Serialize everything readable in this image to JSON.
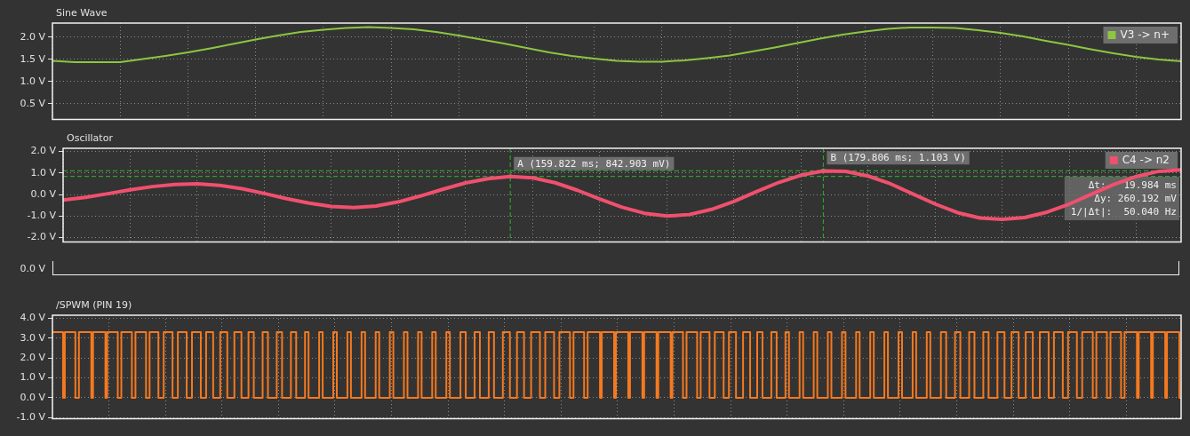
{
  "chart_data": [
    {
      "type": "line",
      "title": "Sine Wave",
      "categories": [
        null,
        null,
        null,
        null,
        null,
        null,
        null,
        null,
        null,
        null,
        null,
        null,
        null,
        null,
        null,
        null,
        null,
        null,
        null,
        null,
        null,
        null,
        null,
        null,
        null,
        null,
        null,
        null,
        null,
        null,
        null,
        null,
        null,
        null,
        null,
        null,
        null,
        null,
        null,
        null,
        null,
        null,
        null,
        null,
        null,
        null,
        null,
        null,
        null,
        null,
        null
      ],
      "series": [
        {
          "name": "V3 -> n+",
          "color": "#8dc63f",
          "values": [
            1.47,
            1.44,
            1.44,
            1.44,
            1.51,
            1.58,
            1.66,
            1.75,
            1.85,
            1.95,
            2.04,
            2.12,
            2.17,
            2.21,
            2.23,
            2.21,
            2.18,
            2.12,
            2.04,
            1.95,
            1.86,
            1.76,
            1.66,
            1.58,
            1.52,
            1.47,
            1.45,
            1.45,
            1.48,
            1.53,
            1.59,
            1.68,
            1.77,
            1.87,
            1.97,
            2.06,
            2.13,
            2.19,
            2.22,
            2.22,
            2.21,
            2.16,
            2.1,
            2.02,
            1.92,
            1.83,
            1.73,
            1.64,
            1.56,
            1.5,
            1.46
          ]
        }
      ],
      "ylim": [
        0.15,
        2.32
      ],
      "yticks": [
        {
          "value": 0.5,
          "label": "0.5 V"
        },
        {
          "value": 1,
          "label": "1.0 V"
        },
        {
          "value": 1.5,
          "label": "1.5 V"
        },
        {
          "value": 2,
          "label": "2.0 V"
        }
      ],
      "grid": true,
      "legend": "top right",
      "marker": "none",
      "tick_labels": "y"
    },
    {
      "type": "line",
      "title": "Oscillator",
      "categories": [
        null,
        null,
        null,
        null,
        null,
        null,
        null,
        null,
        null,
        null,
        null,
        null,
        null,
        null,
        null,
        null,
        null,
        null,
        null,
        null,
        null,
        null,
        null,
        null,
        null,
        null,
        null,
        null,
        null,
        null,
        null,
        null,
        null,
        null,
        null,
        null,
        null,
        null,
        null,
        null,
        null,
        null,
        null,
        null,
        null,
        null,
        null,
        null,
        null,
        null,
        null
      ],
      "series": [
        {
          "name": "C4 -> n2",
          "color": "#f0506e",
          "values": [
            -0.25,
            -0.13,
            0.04,
            0.22,
            0.37,
            0.47,
            0.5,
            0.43,
            0.27,
            0.05,
            -0.19,
            -0.4,
            -0.55,
            -0.6,
            -0.53,
            -0.34,
            -0.06,
            0.25,
            0.54,
            0.74,
            0.84,
            0.78,
            0.55,
            0.2,
            -0.21,
            -0.59,
            -0.87,
            -1.0,
            -0.93,
            -0.69,
            -0.32,
            0.13,
            0.56,
            0.9,
            1.1,
            1.08,
            0.86,
            0.5,
            0.03,
            -0.44,
            -0.84,
            -1.09,
            -1.15,
            -1.07,
            -0.82,
            -0.44,
            0.02,
            0.47,
            0.84,
            1.08,
            1.15
          ]
        }
      ],
      "ylim": [
        -2.2,
        2.15
      ],
      "yticks": [
        {
          "value": 2,
          "label": "2.0 V"
        },
        {
          "value": 1,
          "label": "1.0 V"
        },
        {
          "value": 0,
          "label": "0.0 V"
        },
        {
          "value": -1,
          "label": "-1.0 V"
        },
        {
          "value": -2,
          "label": "-2.0 V"
        }
      ],
      "ref_lines": [
        {
          "axis": "y",
          "value": 0.842903,
          "color": "#2e9e2e",
          "line_style": "dashed"
        },
        {
          "axis": "y",
          "value": 1.103,
          "color": "#2e9e2e",
          "line_style": "dashed"
        }
      ],
      "annotations": [
        {
          "text": "A (159.822 ms; 842.903 mV)",
          "y": 0.842903
        },
        {
          "text": "B (179.806 ms; 1.103 V)",
          "y": 1.103
        },
        "Δt:   19.984 ms",
        "Δy: 260.192 mV",
        "1/|Δt|:  50.040 Hz"
      ],
      "grid": true,
      "legend": "top right",
      "marker": "none",
      "tick_labels": "y"
    },
    {
      "type": "other",
      "annotations": [
        "0.0 V"
      ]
    },
    {
      "type": "step",
      "title": "/SPWM (PIN 19)",
      "categories": [
        null,
        null,
        null,
        null,
        null,
        null,
        null,
        null,
        null,
        null,
        null,
        null,
        null,
        null,
        null,
        null,
        null,
        null,
        null,
        null,
        null,
        null,
        null,
        null,
        null,
        null,
        null,
        null,
        null,
        null,
        null,
        null,
        null,
        null,
        null,
        null,
        null,
        null,
        null,
        null,
        null,
        null,
        null,
        null,
        null,
        null,
        null,
        null,
        null,
        null,
        null,
        null,
        null,
        null,
        null,
        null,
        null,
        null,
        null,
        null,
        null,
        null,
        null,
        null,
        null,
        null,
        null,
        null,
        null,
        null,
        null,
        null,
        null,
        null,
        null,
        null,
        null,
        null,
        null,
        null,
        null,
        null,
        null,
        null,
        null,
        null,
        null,
        null,
        null,
        null,
        null,
        null,
        null,
        null,
        null,
        null,
        null,
        null,
        null,
        null,
        null,
        null,
        null,
        null,
        null,
        null,
        null,
        null,
        null,
        null,
        null,
        null,
        null,
        null,
        null,
        null,
        null,
        null,
        null,
        null,
        null,
        null,
        null,
        null,
        null,
        null,
        null,
        null,
        null,
        null,
        null,
        null,
        null,
        null,
        null,
        null,
        null,
        null,
        null,
        null,
        null,
        null,
        null,
        null,
        null,
        null,
        null,
        null,
        null,
        null,
        null,
        null,
        null,
        null,
        null,
        null,
        null,
        null,
        null,
        null,
        null,
        null,
        null,
        null,
        null,
        null,
        null,
        null,
        null,
        null,
        null,
        null,
        null,
        null,
        null,
        null,
        null,
        null,
        null,
        null,
        null,
        null,
        null,
        null,
        null,
        null,
        null,
        null,
        null,
        null,
        null,
        null,
        null,
        null,
        null,
        null,
        null,
        null,
        null,
        null,
        null,
        null,
        null,
        null,
        null,
        null,
        null,
        null,
        null,
        null,
        null,
        null,
        null,
        null,
        null,
        null,
        null,
        null,
        null,
        null,
        null,
        null,
        null,
        null,
        null,
        null,
        null,
        null,
        null,
        null,
        null,
        null,
        null,
        null,
        null,
        null,
        null,
        null,
        null,
        null,
        null,
        null,
        null,
        null,
        null,
        null,
        null,
        null,
        null,
        null,
        null,
        null,
        null,
        null,
        null,
        null,
        null,
        null,
        null,
        null,
        null,
        null,
        null,
        null,
        null,
        null,
        null,
        null,
        null,
        null,
        null,
        null,
        null,
        null,
        null,
        null,
        null,
        null,
        null,
        null,
        null,
        null,
        null,
        null,
        null,
        null,
        null,
        null,
        null,
        null,
        null,
        null,
        null,
        null,
        null,
        null,
        null,
        null,
        null,
        null,
        null,
        null,
        null,
        null,
        null,
        null,
        null,
        null,
        null,
        null,
        null,
        null,
        null,
        null,
        null,
        null,
        null,
        null,
        null,
        null,
        null,
        null,
        null,
        null,
        null,
        null,
        null,
        null,
        null,
        null,
        null,
        null,
        null,
        null,
        null,
        null,
        null,
        null,
        null,
        null,
        null,
        null,
        null,
        null,
        null,
        null,
        null,
        null,
        null,
        null,
        null,
        null,
        null,
        null,
        null,
        null,
        null,
        null,
        null,
        null,
        null,
        null,
        null,
        null,
        null,
        null,
        null,
        null,
        null,
        null,
        null,
        null,
        null,
        null,
        null,
        null,
        null,
        null,
        null,
        null,
        null,
        null,
        null,
        null,
        null,
        null,
        null,
        null,
        null,
        null,
        null,
        null,
        null,
        null,
        null,
        null,
        null,
        null,
        null,
        null,
        null,
        null,
        null,
        null,
        null,
        null,
        null,
        null,
        null,
        null,
        null,
        null,
        null,
        null,
        null,
        null,
        null,
        null,
        null,
        null,
        null,
        null,
        null,
        null,
        null,
        null,
        null,
        null,
        null,
        null,
        null,
        null,
        null,
        null,
        null,
        null,
        null,
        null,
        null,
        null,
        null,
        null,
        null,
        null,
        null,
        null,
        null,
        null,
        null,
        null,
        null,
        null,
        null,
        null,
        null,
        null,
        null,
        null,
        null,
        null,
        null,
        null,
        null,
        null,
        null,
        null,
        null,
        null,
        null,
        null,
        null,
        null,
        null,
        null,
        null,
        null,
        null,
        null,
        null,
        null,
        null,
        null,
        null,
        null,
        null,
        null,
        null,
        null,
        null,
        null,
        null,
        null,
        null,
        null,
        null,
        null,
        null,
        null,
        null,
        null,
        null,
        null,
        null,
        null,
        null,
        null,
        null,
        null,
        null,
        null,
        null,
        null,
        null,
        null,
        null,
        null,
        null,
        null,
        null,
        null,
        null,
        null,
        null,
        null,
        null,
        null,
        null,
        null,
        null,
        null,
        null,
        null,
        null,
        null,
        null,
        null,
        null,
        null,
        null,
        null,
        null,
        null,
        null,
        null,
        null,
        null,
        null,
        null,
        null,
        null,
        null,
        null,
        null,
        null,
        null,
        null,
        null,
        null,
        null,
        null,
        null,
        null,
        null,
        null,
        null,
        null,
        null,
        null,
        null,
        null,
        null,
        null,
        null,
        null,
        null,
        null,
        null,
        null,
        null,
        null,
        null,
        null,
        null,
        null,
        null,
        null,
        null,
        null,
        null,
        null,
        null,
        null,
        null,
        null,
        null,
        null,
        null,
        null,
        null,
        null,
        null,
        null,
        null,
        null,
        null,
        null,
        null,
        null,
        null,
        null,
        null,
        null,
        null,
        null,
        null,
        null,
        null,
        null,
        null,
        null,
        null,
        null,
        null,
        null,
        null,
        null,
        null,
        null,
        null,
        null,
        null,
        null,
        null,
        null,
        null,
        null,
        null,
        null,
        null,
        null
      ],
      "series": [
        {
          "color": "#f47920",
          "values": [
            3.3,
            3.3,
            3.3,
            3.3,
            3.3,
            3.3,
            3.3,
            0,
            3.3,
            3.3,
            3.3,
            3.3,
            3.3,
            3.3,
            0,
            0,
            3.3,
            3.3,
            3.3,
            3.3,
            3.3,
            3.3,
            3.3,
            0,
            3.3,
            3.3,
            3.3,
            3.3,
            3.3,
            3.3,
            3.3,
            0,
            3.3,
            3.3,
            3.3,
            3.3,
            3.3,
            3.3,
            0,
            0,
            3.3,
            3.3,
            3.3,
            3.3,
            3.3,
            3.3,
            0,
            0,
            3.3,
            3.3,
            3.3,
            3.3,
            3.3,
            3.3,
            0,
            0,
            3.3,
            3.3,
            3.3,
            3.3,
            3.3,
            0,
            0,
            0,
            3.3,
            3.3,
            3.3,
            3.3,
            3.3,
            0,
            0,
            0,
            3.3,
            3.3,
            3.3,
            3.3,
            3.3,
            0,
            0,
            0,
            3.3,
            3.3,
            3.3,
            3.3,
            3.3,
            0,
            0,
            0,
            3.3,
            3.3,
            3.3,
            3.3,
            0,
            0,
            0,
            0,
            3.3,
            3.3,
            3.3,
            3.3,
            0,
            0,
            0,
            0,
            3.3,
            3.3,
            3.3,
            3.3,
            0,
            0,
            0,
            0,
            3.3,
            3.3,
            3.3,
            0,
            0,
            0,
            0,
            0,
            3.3,
            3.3,
            3.3,
            0,
            0,
            0,
            0,
            0,
            3.3,
            3.3,
            3.3,
            0,
            0,
            0,
            0,
            0,
            3.3,
            3.3,
            3.3,
            0,
            0,
            0,
            0,
            0,
            3.3,
            3.3,
            0,
            0,
            0,
            0,
            0,
            0,
            3.3,
            3.3,
            0,
            0,
            0,
            0,
            0,
            0,
            3.3,
            3.3,
            0,
            0,
            0,
            0,
            0,
            0,
            3.3,
            3.3,
            0,
            0,
            0,
            0,
            0,
            0,
            3.3,
            3.3,
            0,
            0,
            0,
            0,
            0,
            0,
            3.3,
            3.3,
            0,
            0,
            0,
            0,
            0,
            0,
            3.3,
            3.3,
            0,
            0,
            0,
            0,
            0,
            0,
            3.3,
            3.3,
            0,
            0,
            0,
            0,
            0,
            0,
            3.3,
            3.3,
            0,
            0,
            0,
            0,
            0,
            0,
            3.3,
            3.3,
            0,
            0,
            0,
            0,
            0,
            0,
            3.3,
            3.3,
            0,
            0,
            0,
            0,
            0,
            0,
            3.3,
            3.3,
            3.3,
            0,
            0,
            0,
            0,
            0,
            3.3,
            3.3,
            3.3,
            0,
            0,
            0,
            0,
            0,
            3.3,
            3.3,
            3.3,
            0,
            0,
            0,
            0,
            0,
            3.3,
            3.3,
            3.3,
            3.3,
            0,
            0,
            0,
            0,
            3.3,
            3.3,
            3.3,
            3.3,
            0,
            0,
            0,
            0,
            3.3,
            3.3,
            3.3,
            3.3,
            3.3,
            0,
            0,
            0,
            3.3,
            3.3,
            3.3,
            3.3,
            3.3,
            0,
            0,
            0,
            3.3,
            3.3,
            3.3,
            3.3,
            3.3,
            3.3,
            0,
            0,
            3.3,
            3.3,
            3.3,
            3.3,
            3.3,
            3.3,
            0,
            0,
            3.3,
            3.3,
            3.3,
            3.3,
            3.3,
            3.3,
            3.3,
            0,
            3.3,
            3.3,
            3.3,
            3.3,
            3.3,
            3.3,
            3.3,
            0,
            3.3,
            3.3,
            3.3,
            3.3,
            3.3,
            3.3,
            3.3,
            0,
            3.3,
            3.3,
            3.3,
            3.3,
            3.3,
            3.3,
            3.3,
            0,
            3.3,
            3.3,
            3.3,
            3.3,
            3.3,
            3.3,
            3.3,
            0,
            3.3,
            3.3,
            3.3,
            3.3,
            3.3,
            3.3,
            3.3,
            0,
            3.3,
            3.3,
            3.3,
            3.3,
            3.3,
            3.3,
            0,
            0,
            3.3,
            3.3,
            3.3,
            3.3,
            3.3,
            3.3,
            0,
            0,
            3.3,
            3.3,
            3.3,
            3.3,
            3.3,
            0,
            0,
            0,
            3.3,
            3.3,
            3.3,
            3.3,
            3.3,
            0,
            0,
            0,
            3.3,
            3.3,
            3.3,
            3.3,
            0,
            0,
            0,
            0,
            3.3,
            3.3,
            3.3,
            3.3,
            0,
            0,
            0,
            0,
            3.3,
            3.3,
            3.3,
            0,
            0,
            0,
            0,
            0,
            3.3,
            3.3,
            3.3,
            0,
            0,
            0,
            0,
            0,
            3.3,
            3.3,
            0,
            0,
            0,
            0,
            0,
            0,
            3.3,
            3.3,
            0,
            0,
            0,
            0,
            0,
            0,
            3.3,
            3.3,
            0,
            0,
            0,
            0,
            0,
            0,
            3.3,
            3.3,
            0,
            0,
            0,
            0,
            0,
            0,
            3.3,
            3.3,
            0,
            0,
            0,
            0,
            0,
            0,
            3.3,
            3.3,
            0,
            0,
            0,
            0,
            0,
            0,
            3.3,
            3.3,
            0,
            0,
            0,
            0,
            0,
            0,
            3.3,
            3.3,
            0,
            0,
            0,
            0,
            0,
            0,
            3.3,
            3.3,
            0,
            0,
            0,
            0,
            0,
            0,
            3.3,
            3.3,
            0,
            0,
            0,
            0,
            0,
            0,
            3.3,
            3.3,
            0,
            0,
            0,
            0,
            0,
            0,
            3.3,
            3.3,
            3.3,
            0,
            0,
            0,
            0,
            0,
            3.3,
            3.3,
            3.3,
            0,
            0,
            0,
            0,
            0,
            3.3,
            3.3,
            3.3,
            0,
            0,
            0,
            0,
            0,
            3.3,
            3.3,
            3.3,
            0,
            0,
            0,
            0,
            0,
            3.3,
            3.3,
            3.3,
            3.3,
            0,
            0,
            0,
            0,
            3.3,
            3.3,
            3.3,
            3.3,
            0,
            0,
            0,
            0,
            3.3,
            3.3,
            3.3,
            3.3,
            0,
            0,
            0,
            0,
            3.3,
            3.3,
            3.3,
            3.3,
            3.3,
            0,
            0,
            0,
            3.3,
            3.3,
            3.3,
            3.3,
            3.3,
            0,
            0,
            0,
            3.3,
            3.3,
            3.3,
            3.3,
            3.3,
            0,
            0,
            0,
            3.3,
            3.3,
            3.3,
            3.3,
            3.3,
            3.3,
            0,
            0,
            3.3,
            3.3,
            3.3,
            3.3,
            3.3,
            3.3,
            0,
            0,
            3.3,
            3.3,
            3.3,
            3.3,
            3.3,
            3.3,
            0,
            0,
            3.3,
            3.3,
            3.3,
            3.3,
            3.3,
            3.3,
            3.3,
            0,
            3.3,
            3.3,
            3.3,
            3.3,
            3.3,
            3.3,
            3.3,
            0,
            3.3,
            3.3,
            3.3,
            3.3,
            3.3,
            3.3,
            3.3,
            0,
            3.3,
            3.3,
            3.3,
            3.3,
            3.3,
            3.3,
            3.3,
            0
          ]
        }
      ],
      "ylim": [
        -1.05,
        4.15
      ],
      "yticks": [
        {
          "value": 4,
          "label": "4.0 V"
        },
        {
          "value": 3,
          "label": "3.0 V"
        },
        {
          "value": 2,
          "label": "2.0 V"
        },
        {
          "value": 1,
          "label": "1.0 V"
        },
        {
          "value": 0,
          "label": "0.0 V"
        },
        {
          "value": -1,
          "label": "-1.0 V"
        }
      ],
      "grid": true,
      "marker": "none",
      "tick_labels": "y"
    }
  ]
}
